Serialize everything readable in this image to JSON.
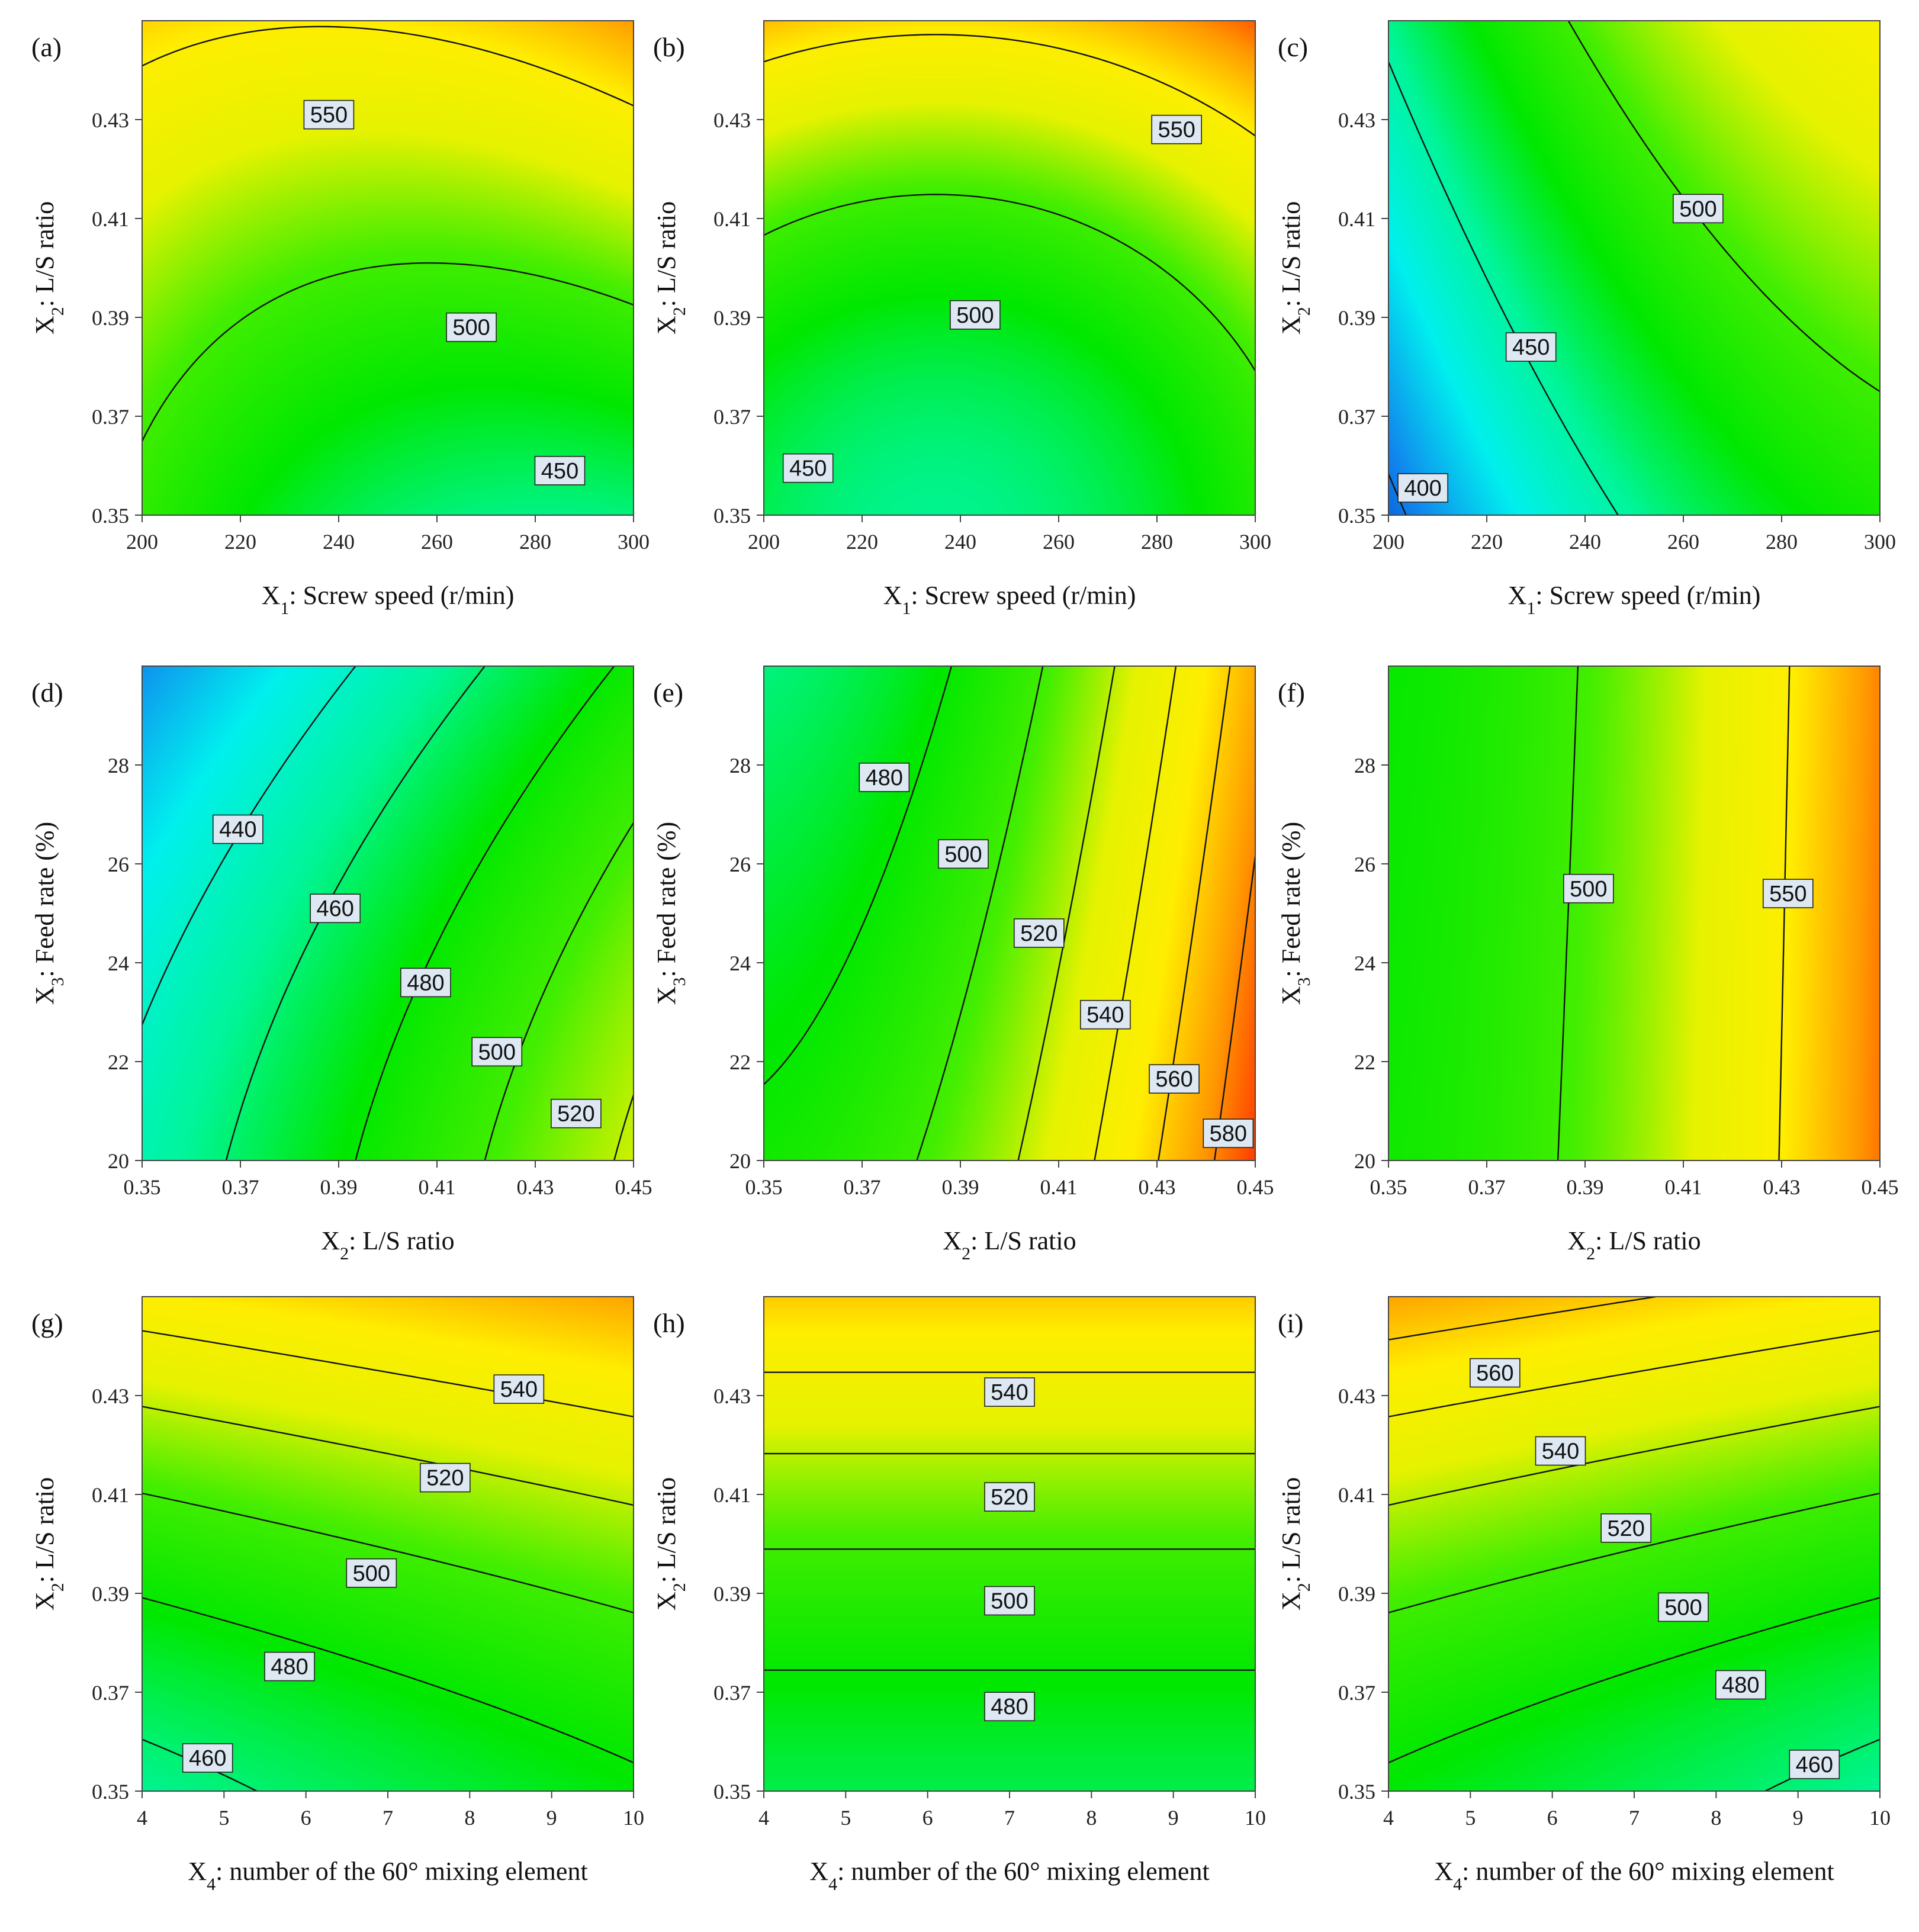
{
  "figure": {
    "description_type": "3x3 grid of response-surface contour plots"
  },
  "colormap": {
    "stops": [
      "#0039c6",
      "#1188ee",
      "#00f0ee",
      "#00f59a",
      "#00e800",
      "#44ee00",
      "#e6f200",
      "#ffee00",
      "#ff9900",
      "#ff2a00"
    ],
    "value_range": [
      380,
      600
    ]
  },
  "chart_data": [
    {
      "type": "contour",
      "panel": "(a)",
      "xlabel_var": "X",
      "xlabel_sub": "1",
      "xlabel_text": ": Screw speed (r/min)",
      "ylabel_var": "X",
      "ylabel_sub": "2",
      "ylabel_text": ": L/S ratio",
      "xlim": [
        200,
        300
      ],
      "ylim": [
        0.35,
        0.45
      ],
      "xticks": [
        200,
        220,
        240,
        260,
        280,
        300
      ],
      "xtick_labels": [
        "200",
        "220",
        "240",
        "260",
        "280",
        "300"
      ],
      "yticks": [
        0.35,
        0.37,
        0.39,
        0.41,
        0.43
      ],
      "ytick_labels": [
        "0.35",
        "0.37",
        "0.39",
        "0.41",
        "0.43"
      ],
      "model": {
        "c": 499.5,
        "a": -5,
        "b": 45,
        "ab": 13,
        "aa": 14,
        "bb": 8
      },
      "levels": [
        450,
        500,
        550
      ],
      "contour_labels": [
        {
          "text": "550",
          "x": 238,
          "y": 0.431
        },
        {
          "text": "500",
          "x": 267,
          "y": 0.388
        },
        {
          "text": "450",
          "x": 285,
          "y": 0.359
        }
      ]
    },
    {
      "type": "contour",
      "panel": "(b)",
      "xlabel_var": "X",
      "xlabel_sub": "1",
      "xlabel_text": ": Screw speed (r/min)",
      "ylabel_var": "X",
      "ylabel_sub": "2",
      "ylabel_text": ": L/S ratio",
      "xlim": [
        200,
        300
      ],
      "ylim": [
        0.35,
        0.45
      ],
      "xticks": [
        200,
        220,
        240,
        260,
        280,
        300
      ],
      "xtick_labels": [
        "200",
        "220",
        "240",
        "260",
        "280",
        "300"
      ],
      "yticks": [
        0.35,
        0.37,
        0.39,
        0.41,
        0.43
      ],
      "ytick_labels": [
        "0.35",
        "0.37",
        "0.39",
        "0.41",
        "0.43"
      ],
      "model": {
        "c": 485,
        "a": 12,
        "b": 50,
        "ab": 0,
        "aa": 20,
        "bb": 22
      },
      "levels": [
        450,
        500,
        550
      ],
      "contour_labels": [
        {
          "text": "550",
          "x": 284,
          "y": 0.428
        },
        {
          "text": "500",
          "x": 243,
          "y": 0.3905
        },
        {
          "text": "450",
          "x": 209,
          "y": 0.3595
        }
      ]
    },
    {
      "type": "contour",
      "panel": "(c)",
      "xlabel_var": "X",
      "xlabel_sub": "1",
      "xlabel_text": ": Screw speed (r/min)",
      "ylabel_var": "X",
      "ylabel_sub": "2",
      "ylabel_text": ": L/S ratio",
      "xlim": [
        200,
        300
      ],
      "ylim": [
        0.35,
        0.45
      ],
      "xticks": [
        200,
        220,
        240,
        260,
        280,
        300
      ],
      "xtick_labels": [
        "200",
        "220",
        "240",
        "260",
        "280",
        "300"
      ],
      "yticks": [
        0.35,
        0.37,
        0.39,
        0.41,
        0.43
      ],
      "ytick_labels": [
        "0.35",
        "0.37",
        "0.39",
        "0.41",
        "0.43"
      ],
      "model": {
        "c": 483,
        "a": 45,
        "b": 30,
        "ab": 0,
        "aa": -13,
        "bb": 0
      },
      "levels": [
        400,
        450,
        500
      ],
      "contour_labels": [
        {
          "text": "500",
          "x": 263,
          "y": 0.412
        },
        {
          "text": "450",
          "x": 229,
          "y": 0.384
        },
        {
          "text": "400",
          "x": 207,
          "y": 0.3555
        }
      ]
    },
    {
      "type": "contour",
      "panel": "(d)",
      "xlabel_var": "X",
      "xlabel_sub": "2",
      "xlabel_text": ": L/S ratio",
      "ylabel_var": "X",
      "ylabel_sub": "3",
      "ylabel_text": ": Feed rate (%)",
      "xlim": [
        0.35,
        0.45
      ],
      "ylim": [
        20,
        30
      ],
      "xticks": [
        0.35,
        0.37,
        0.39,
        0.41,
        0.43,
        0.45
      ],
      "xtick_labels": [
        "0.35",
        "0.37",
        "0.39",
        "0.41",
        "0.43",
        "0.45"
      ],
      "yticks": [
        20,
        22,
        24,
        26,
        28
      ],
      "ytick_labels": [
        "20",
        "22",
        "24",
        "26",
        "28"
      ],
      "model": {
        "c": 470,
        "a": 38,
        "b": -20,
        "ab": 0,
        "aa": 0,
        "bb": -5
      },
      "levels": [
        440,
        460,
        480,
        500,
        520
      ],
      "contour_labels": [
        {
          "text": "440",
          "x": 0.3695,
          "y": 26.7
        },
        {
          "text": "460",
          "x": 0.3893,
          "y": 25.1
        },
        {
          "text": "480",
          "x": 0.4077,
          "y": 23.6
        },
        {
          "text": "500",
          "x": 0.4222,
          "y": 22.2
        },
        {
          "text": "520",
          "x": 0.4383,
          "y": 20.95
        }
      ]
    },
    {
      "type": "contour",
      "panel": "(e)",
      "xlabel_var": "X",
      "xlabel_sub": "2",
      "xlabel_text": ": L/S ratio",
      "ylabel_var": "X",
      "ylabel_sub": "3",
      "ylabel_text": ": Feed rate (%)",
      "xlim": [
        0.35,
        0.45
      ],
      "ylim": [
        20,
        30
      ],
      "xticks": [
        0.35,
        0.37,
        0.39,
        0.41,
        0.43,
        0.45
      ],
      "xtick_labels": [
        "0.35",
        "0.37",
        "0.39",
        "0.41",
        "0.43",
        "0.45"
      ],
      "yticks": [
        20,
        22,
        24,
        26,
        28
      ],
      "ytick_labels": [
        "20",
        "22",
        "24",
        "26",
        "28"
      ],
      "model": {
        "c": 505,
        "a": 56,
        "b": -13,
        "ab": 0,
        "aa": 22,
        "bb": 0
      },
      "levels": [
        480,
        500,
        520,
        540,
        560,
        580
      ],
      "contour_labels": [
        {
          "text": "480",
          "x": 0.3745,
          "y": 27.75
        },
        {
          "text": "500",
          "x": 0.3906,
          "y": 26.2
        },
        {
          "text": "520",
          "x": 0.406,
          "y": 24.6
        },
        {
          "text": "540",
          "x": 0.4195,
          "y": 22.95
        },
        {
          "text": "560",
          "x": 0.4335,
          "y": 21.65
        },
        {
          "text": "580",
          "x": 0.4445,
          "y": 20.55
        }
      ]
    },
    {
      "type": "contour",
      "panel": "(f)",
      "xlabel_var": "X",
      "xlabel_sub": "2",
      "xlabel_text": ": L/S ratio",
      "ylabel_var": "X",
      "ylabel_sub": "3",
      "ylabel_text": ": Feed rate (%)",
      "xlim": [
        0.35,
        0.45
      ],
      "ylim": [
        20,
        30
      ],
      "xticks": [
        0.35,
        0.37,
        0.39,
        0.41,
        0.43,
        0.45
      ],
      "xtick_labels": [
        "0.35",
        "0.37",
        "0.39",
        "0.41",
        "0.43",
        "0.45"
      ],
      "yticks": [
        20,
        22,
        24,
        26,
        28
      ],
      "ytick_labels": [
        "20",
        "22",
        "24",
        "26",
        "28"
      ],
      "model": {
        "c": 512,
        "a": 50,
        "b": -1.6,
        "ab": 0,
        "aa": 20,
        "bb": 0
      },
      "levels": [
        500,
        550
      ],
      "contour_labels": [
        {
          "text": "500",
          "x": 0.3907,
          "y": 25.5
        },
        {
          "text": "550",
          "x": 0.4313,
          "y": 25.4
        }
      ]
    },
    {
      "type": "contour",
      "panel": "(g)",
      "xlabel_var": "X",
      "xlabel_sub": "4",
      "xlabel_text": ": number of the 60° mixing element",
      "ylabel_var": "X",
      "ylabel_sub": "2",
      "ylabel_text": ": L/S ratio",
      "xlim": [
        4,
        10
      ],
      "ylim": [
        0.35,
        0.45
      ],
      "xticks": [
        4,
        5,
        6,
        7,
        8,
        9,
        10
      ],
      "xtick_labels": [
        "4",
        "5",
        "6",
        "7",
        "8",
        "9",
        "10"
      ],
      "yticks": [
        0.35,
        0.37,
        0.39,
        0.41,
        0.43
      ],
      "ytick_labels": [
        "0.35",
        "0.37",
        "0.39",
        "0.41",
        "0.43"
      ],
      "model": {
        "c": 501,
        "a": 11.25,
        "b": 47.5,
        "ab": 0,
        "aa": 0,
        "bb": 12.5
      },
      "levels": [
        460,
        480,
        500,
        520,
        540
      ],
      "contour_labels": [
        {
          "text": "460",
          "x": 4.8,
          "y": 0.3567
        },
        {
          "text": "480",
          "x": 5.8,
          "y": 0.3752
        },
        {
          "text": "500",
          "x": 6.8,
          "y": 0.3941
        },
        {
          "text": "520",
          "x": 7.7,
          "y": 0.4134
        },
        {
          "text": "540",
          "x": 8.6,
          "y": 0.4313
        }
      ]
    },
    {
      "type": "contour",
      "panel": "(h)",
      "xlabel_var": "X",
      "xlabel_sub": "4",
      "xlabel_text": ": number of the 60° mixing element",
      "ylabel_var": "X",
      "ylabel_sub": "2",
      "ylabel_text": ": L/S ratio",
      "xlim": [
        4,
        10
      ],
      "ylim": [
        0.35,
        0.45
      ],
      "xticks": [
        4,
        5,
        6,
        7,
        8,
        9,
        10
      ],
      "xtick_labels": [
        "4",
        "5",
        "6",
        "7",
        "8",
        "9",
        "10"
      ],
      "yticks": [
        0.35,
        0.37,
        0.39,
        0.41,
        0.43
      ],
      "ytick_labels": [
        "0.35",
        "0.37",
        "0.39",
        "0.41",
        "0.43"
      ],
      "model": {
        "c": 501,
        "a": 0,
        "b": 47.5,
        "ab": 0,
        "aa": 0,
        "bb": 12.5
      },
      "levels": [
        480,
        500,
        520,
        540
      ],
      "contour_labels": [
        {
          "text": "480",
          "x": 7,
          "y": 0.3671
        },
        {
          "text": "500",
          "x": 7,
          "y": 0.3885
        },
        {
          "text": "520",
          "x": 7,
          "y": 0.4095
        },
        {
          "text": "540",
          "x": 7,
          "y": 0.4307
        }
      ]
    },
    {
      "type": "contour",
      "panel": "(i)",
      "xlabel_var": "X",
      "xlabel_sub": "4",
      "xlabel_text": ": number of the 60° mixing element",
      "ylabel_var": "X",
      "ylabel_sub": "2",
      "ylabel_text": ": L/S ratio",
      "xlim": [
        4,
        10
      ],
      "ylim": [
        0.35,
        0.45
      ],
      "xticks": [
        4,
        5,
        6,
        7,
        8,
        9,
        10
      ],
      "xtick_labels": [
        "4",
        "5",
        "6",
        "7",
        "8",
        "9",
        "10"
      ],
      "yticks": [
        0.35,
        0.37,
        0.39,
        0.41,
        0.43
      ],
      "ytick_labels": [
        "0.35",
        "0.37",
        "0.39",
        "0.41",
        "0.43"
      ],
      "model": {
        "c": 501,
        "a": -11.25,
        "b": 47.5,
        "ab": 0,
        "aa": 0,
        "bb": 12.5
      },
      "levels": [
        460,
        480,
        500,
        520,
        540,
        560
      ],
      "contour_labels": [
        {
          "text": "460",
          "x": 9.2,
          "y": 0.3554
        },
        {
          "text": "480",
          "x": 8.3,
          "y": 0.3715
        },
        {
          "text": "500",
          "x": 7.6,
          "y": 0.3872
        },
        {
          "text": "520",
          "x": 6.9,
          "y": 0.4032
        },
        {
          "text": "540",
          "x": 6.1,
          "y": 0.4188
        },
        {
          "text": "560",
          "x": 5.3,
          "y": 0.4346
        }
      ]
    }
  ]
}
